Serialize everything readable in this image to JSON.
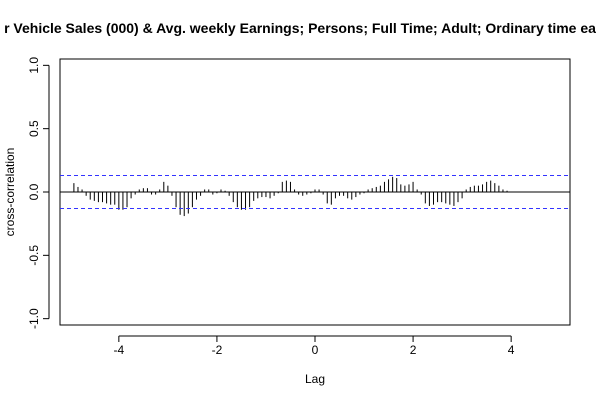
{
  "chart_data": {
    "type": "bar",
    "title": "r Vehicle Sales (000) & Avg. weekly Earnings; Persons; Full Time; Adult; Ordinary time ea",
    "xlabel": "Lag",
    "ylabel": "cross-correlation",
    "xlim": [
      -5.2,
      5.2
    ],
    "ylim": [
      -1.05,
      1.05
    ],
    "x_ticks": [
      -4,
      -2,
      0,
      2,
      4
    ],
    "y_ticks": [
      -1.0,
      -0.5,
      0.0,
      0.5,
      1.0
    ],
    "y_tick_labels": [
      "-1.0",
      "-0.5",
      "0.0",
      "0.5",
      "1.0"
    ],
    "confidence_bound": 0.13,
    "colors": {
      "bars": "#000000",
      "confidence_lines": "#3333ff",
      "zero_line": "#000000",
      "frame": "#000000"
    },
    "lag_start": -4.9167,
    "lag_step": 0.08333,
    "values": [
      0.07,
      0.04,
      0.02,
      -0.03,
      -0.06,
      -0.07,
      -0.08,
      -0.08,
      -0.09,
      -0.1,
      -0.1,
      -0.14,
      -0.14,
      -0.12,
      -0.05,
      -0.02,
      0.02,
      0.03,
      0.03,
      -0.02,
      -0.02,
      0.02,
      0.08,
      0.05,
      -0.03,
      -0.12,
      -0.18,
      -0.19,
      -0.17,
      -0.12,
      -0.06,
      -0.03,
      0.02,
      0.02,
      -0.02,
      -0.01,
      0.02,
      0.01,
      -0.03,
      -0.08,
      -0.12,
      -0.14,
      -0.14,
      -0.12,
      -0.07,
      -0.05,
      -0.04,
      -0.04,
      -0.05,
      -0.03,
      -0.01,
      0.08,
      0.09,
      0.08,
      0.02,
      -0.02,
      -0.03,
      -0.02,
      -0.01,
      0.02,
      0.02,
      -0.02,
      -0.09,
      -0.1,
      -0.05,
      -0.03,
      -0.03,
      -0.05,
      -0.06,
      -0.04,
      -0.02,
      -0.01,
      0.02,
      0.03,
      0.04,
      0.05,
      0.08,
      0.1,
      0.12,
      0.11,
      0.06,
      0.05,
      0.06,
      0.08,
      0.02,
      -0.02,
      -0.09,
      -0.11,
      -0.1,
      -0.08,
      -0.08,
      -0.09,
      -0.1,
      -0.11,
      -0.08,
      -0.05,
      0.02,
      0.04,
      0.05,
      0.05,
      0.06,
      0.08,
      0.09,
      0.07,
      0.05,
      0.02,
      0.01
    ]
  }
}
